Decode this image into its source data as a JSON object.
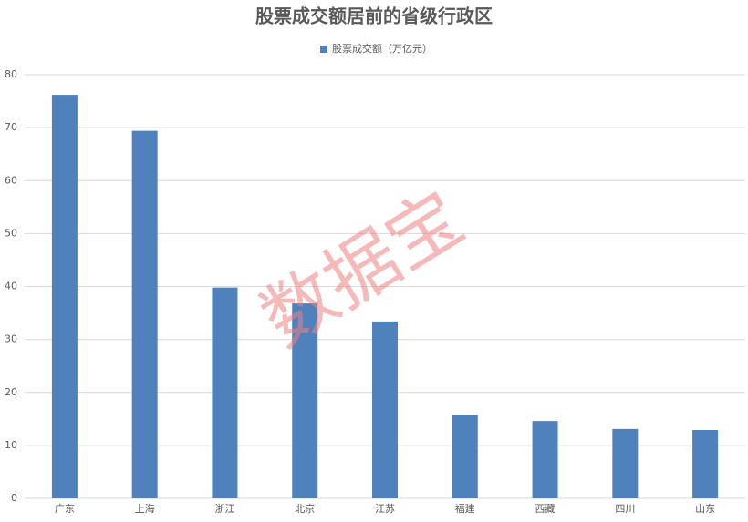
{
  "chart_data": {
    "type": "bar",
    "title": "股票成交额居前的省级行政区",
    "categories": [
      "广东",
      "上海",
      "浙江",
      "北京",
      "江苏",
      "福建",
      "西藏",
      "四川",
      "山东"
    ],
    "series": [
      {
        "name": "股票成交额（万亿元）",
        "color": "#4f81bd",
        "values": [
          76.2,
          69.4,
          39.8,
          36.8,
          33.4,
          15.7,
          14.6,
          13.1,
          12.9
        ]
      }
    ],
    "ylim": [
      0,
      80
    ],
    "yticks": [
      0,
      10,
      20,
      30,
      40,
      50,
      60,
      70,
      80
    ],
    "grid": true,
    "watermark": "数据宝"
  }
}
